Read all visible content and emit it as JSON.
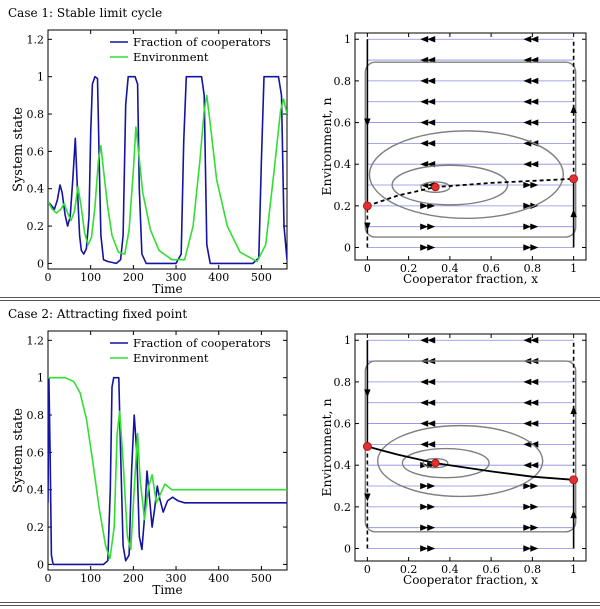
{
  "figure": {
    "cases": [
      {
        "title": "Case 1: Stable limit cycle",
        "timeseries": {
          "type": "line",
          "ylabel": "System state",
          "xlabel": "Time",
          "xlim": [
            0,
            560
          ],
          "ylim": [
            -0.03,
            1.25
          ],
          "xticks": [
            0,
            100,
            200,
            300,
            400,
            500
          ],
          "yticks": [
            0,
            0.2,
            0.4,
            0.6,
            0.8,
            1,
            1.2
          ],
          "ytick_labels": [
            "0",
            "0.2",
            "0.4",
            "0.6",
            "0.8",
            "1",
            "1.2"
          ],
          "legend": [
            "Fraction of cooperators",
            "Environment"
          ],
          "legend_position": "top-right",
          "series": [
            {
              "name": "Fraction of cooperators",
              "color": "#1414a0",
              "points": [
                [
                  0,
                  0.33
                ],
                [
                  8,
                  0.31
                ],
                [
                  15,
                  0.29
                ],
                [
                  22,
                  0.34
                ],
                [
                  28,
                  0.42
                ],
                [
                  33,
                  0.38
                ],
                [
                  40,
                  0.26
                ],
                [
                  46,
                  0.2
                ],
                [
                  52,
                  0.25
                ],
                [
                  58,
                  0.45
                ],
                [
                  64,
                  0.67
                ],
                [
                  69,
                  0.4
                ],
                [
                  74,
                  0.15
                ],
                [
                  78,
                  0.07
                ],
                [
                  84,
                  0.05
                ],
                [
                  90,
                  0.08
                ],
                [
                  96,
                  0.25
                ],
                [
                  100,
                  0.7
                ],
                [
                  104,
                  0.96
                ],
                [
                  110,
                  1.0
                ],
                [
                  116,
                  0.99
                ],
                [
                  120,
                  0.55
                ],
                [
                  124,
                  0.15
                ],
                [
                  130,
                  0.02
                ],
                [
                  140,
                  0.01
                ],
                [
                  160,
                  0.0
                ],
                [
                  170,
                  0.02
                ],
                [
                  176,
                  0.15
                ],
                [
                  182,
                  0.85
                ],
                [
                  188,
                  1.0
                ],
                [
                  204,
                  1.0
                ],
                [
                  210,
                  0.96
                ],
                [
                  214,
                  0.4
                ],
                [
                  220,
                  0.05
                ],
                [
                  230,
                  0.0
                ],
                [
                  300,
                  0.0
                ],
                [
                  312,
                  0.05
                ],
                [
                  318,
                  0.65
                ],
                [
                  324,
                  1.0
                ],
                [
                  360,
                  1.0
                ],
                [
                  366,
                  0.9
                ],
                [
                  372,
                  0.1
                ],
                [
                  380,
                  0.0
                ],
                [
                  480,
                  0.0
                ],
                [
                  494,
                  0.03
                ],
                [
                  500,
                  0.55
                ],
                [
                  506,
                  1.0
                ],
                [
                  540,
                  1.0
                ],
                [
                  547,
                  0.9
                ],
                [
                  553,
                  0.2
                ],
                [
                  560,
                  0.02
                ]
              ]
            },
            {
              "name": "Environment",
              "color": "#33dd33",
              "points": [
                [
                  0,
                  0.33
                ],
                [
                  10,
                  0.29
                ],
                [
                  20,
                  0.27
                ],
                [
                  30,
                  0.29
                ],
                [
                  38,
                  0.32
                ],
                [
                  46,
                  0.27
                ],
                [
                  54,
                  0.23
                ],
                [
                  62,
                  0.28
                ],
                [
                  70,
                  0.41
                ],
                [
                  78,
                  0.3
                ],
                [
                  86,
                  0.16
                ],
                [
                  94,
                  0.1
                ],
                [
                  102,
                  0.14
                ],
                [
                  110,
                  0.3
                ],
                [
                  118,
                  0.55
                ],
                [
                  124,
                  0.63
                ],
                [
                  130,
                  0.5
                ],
                [
                  140,
                  0.3
                ],
                [
                  150,
                  0.15
                ],
                [
                  165,
                  0.06
                ],
                [
                  180,
                  0.05
                ],
                [
                  190,
                  0.18
                ],
                [
                  200,
                  0.5
                ],
                [
                  206,
                  0.73
                ],
                [
                  212,
                  0.6
                ],
                [
                  222,
                  0.38
                ],
                [
                  240,
                  0.18
                ],
                [
                  260,
                  0.07
                ],
                [
                  290,
                  0.02
                ],
                [
                  320,
                  0.02
                ],
                [
                  340,
                  0.2
                ],
                [
                  356,
                  0.55
                ],
                [
                  366,
                  0.82
                ],
                [
                  372,
                  0.9
                ],
                [
                  380,
                  0.75
                ],
                [
                  395,
                  0.45
                ],
                [
                  420,
                  0.2
                ],
                [
                  450,
                  0.06
                ],
                [
                  490,
                  0.01
                ],
                [
                  510,
                  0.1
                ],
                [
                  530,
                  0.5
                ],
                [
                  545,
                  0.82
                ],
                [
                  552,
                  0.88
                ],
                [
                  560,
                  0.8
                ]
              ]
            }
          ]
        },
        "phase": {
          "type": "line",
          "ylabel": "Environment, n",
          "xlabel": "Cooperator fraction, x",
          "xlim": [
            -0.06,
            1.06
          ],
          "ylim": [
            -0.06,
            1.03
          ],
          "xticks": [
            0,
            0.2,
            0.4,
            0.6,
            0.8,
            1
          ],
          "xtick_labels": [
            "0",
            "0.2",
            "0.4",
            "0.6",
            "0.8",
            "1"
          ],
          "yticks": [
            0,
            0.2,
            0.4,
            0.6,
            0.8,
            1
          ],
          "ytick_labels": [
            "0",
            "0.2",
            "0.4",
            "0.6",
            "0.8",
            "1"
          ],
          "interior_fixed_point": [
            0.33,
            0.29
          ],
          "edge_fixed_points": [
            [
              0,
              0.2
            ],
            [
              1,
              0.33
            ]
          ],
          "nullcline": "dashed",
          "nullcline_points": [
            [
              0,
              0.2
            ],
            [
              0.15,
              0.25
            ],
            [
              0.33,
              0.29
            ],
            [
              0.6,
              0.31
            ],
            [
              0.8,
              0.32
            ],
            [
              1,
              0.33
            ]
          ],
          "orbits": [
            {
              "center": [
                0.33,
                0.29
              ],
              "rx": 0.07,
              "ry": 0.025
            },
            {
              "center": [
                0.4,
                0.3
              ],
              "rx": 0.28,
              "ry": 0.095
            },
            {
              "center": [
                0.48,
                0.35
              ],
              "rx": 0.47,
              "ry": 0.21
            },
            {
              "center": [
                0.5,
                0.47
              ],
              "rx": 0.51,
              "ry": 0.42
            }
          ]
        }
      },
      {
        "title": "Case 2: Attracting fixed point",
        "timeseries": {
          "type": "line",
          "ylabel": "System state",
          "xlabel": "Time",
          "xlim": [
            0,
            560
          ],
          "ylim": [
            -0.03,
            1.25
          ],
          "xticks": [
            0,
            100,
            200,
            300,
            400,
            500
          ],
          "yticks": [
            0,
            0.2,
            0.4,
            0.6,
            0.8,
            1,
            1.2
          ],
          "ytick_labels": [
            "0",
            "0.2",
            "0.4",
            "0.6",
            "0.8",
            "1",
            "1.2"
          ],
          "legend": [
            "Fraction of cooperators",
            "Environment"
          ],
          "legend_position": "top-right",
          "series": [
            {
              "name": "Fraction of cooperators",
              "color": "#1414a0",
              "points": [
                [
                  0,
                  0.33
                ],
                [
                  2,
                  1.0
                ],
                [
                  5,
                  0.6
                ],
                [
                  8,
                  0.05
                ],
                [
                  12,
                  0.0
                ],
                [
                  130,
                  0.0
                ],
                [
                  140,
                  0.02
                ],
                [
                  146,
                  0.4
                ],
                [
                  150,
                  0.95
                ],
                [
                  154,
                  1.0
                ],
                [
                  166,
                  1.0
                ],
                [
                  170,
                  0.6
                ],
                [
                  176,
                  0.1
                ],
                [
                  182,
                  0.02
                ],
                [
                  190,
                  0.05
                ],
                [
                  196,
                  0.5
                ],
                [
                  202,
                  0.8
                ],
                [
                  208,
                  0.6
                ],
                [
                  214,
                  0.15
                ],
                [
                  220,
                  0.08
                ],
                [
                  226,
                  0.25
                ],
                [
                  232,
                  0.5
                ],
                [
                  238,
                  0.35
                ],
                [
                  244,
                  0.2
                ],
                [
                  250,
                  0.3
                ],
                [
                  256,
                  0.42
                ],
                [
                  262,
                  0.35
                ],
                [
                  270,
                  0.28
                ],
                [
                  280,
                  0.34
                ],
                [
                  292,
                  0.36
                ],
                [
                  305,
                  0.34
                ],
                [
                  320,
                  0.33
                ],
                [
                  560,
                  0.33
                ]
              ]
            },
            {
              "name": "Environment",
              "color": "#33dd33",
              "points": [
                [
                  0,
                  1.0
                ],
                [
                  40,
                  1.0
                ],
                [
                  60,
                  0.98
                ],
                [
                  75,
                  0.92
                ],
                [
                  90,
                  0.78
                ],
                [
                  105,
                  0.55
                ],
                [
                  120,
                  0.3
                ],
                [
                  135,
                  0.1
                ],
                [
                  145,
                  0.03
                ],
                [
                  155,
                  0.2
                ],
                [
                  162,
                  0.7
                ],
                [
                  168,
                  0.82
                ],
                [
                  176,
                  0.55
                ],
                [
                  186,
                  0.15
                ],
                [
                  194,
                  0.08
                ],
                [
                  202,
                  0.4
                ],
                [
                  210,
                  0.7
                ],
                [
                  216,
                  0.45
                ],
                [
                  226,
                  0.24
                ],
                [
                  236,
                  0.42
                ],
                [
                  244,
                  0.48
                ],
                [
                  254,
                  0.33
                ],
                [
                  264,
                  0.38
                ],
                [
                  274,
                  0.43
                ],
                [
                  290,
                  0.4
                ],
                [
                  320,
                  0.4
                ],
                [
                  560,
                  0.4
                ]
              ]
            }
          ]
        },
        "phase": {
          "type": "line",
          "ylabel": "Environment, n",
          "xlabel": "Cooperator fraction, x",
          "xlim": [
            -0.06,
            1.06
          ],
          "ylim": [
            -0.06,
            1.03
          ],
          "xticks": [
            0,
            0.2,
            0.4,
            0.6,
            0.8,
            1
          ],
          "xtick_labels": [
            "0",
            "0.2",
            "0.4",
            "0.6",
            "0.8",
            "1"
          ],
          "yticks": [
            0,
            0.2,
            0.4,
            0.6,
            0.8,
            1
          ],
          "ytick_labels": [
            "0",
            "0.2",
            "0.4",
            "0.6",
            "0.8",
            "1"
          ],
          "interior_fixed_point": [
            0.33,
            0.41
          ],
          "edge_fixed_points": [
            [
              0,
              0.49
            ],
            [
              1,
              0.33
            ]
          ],
          "nullcline": "solid",
          "nullcline_points": [
            [
              0,
              0.49
            ],
            [
              0.15,
              0.45
            ],
            [
              0.33,
              0.41
            ],
            [
              0.6,
              0.37
            ],
            [
              0.8,
              0.345
            ],
            [
              1,
              0.33
            ]
          ],
          "orbits": [
            {
              "center": [
                0.33,
                0.41
              ],
              "rx": 0.06,
              "ry": 0.022
            },
            {
              "center": [
                0.38,
                0.41
              ],
              "rx": 0.21,
              "ry": 0.07
            },
            {
              "center": [
                0.45,
                0.42
              ],
              "rx": 0.4,
              "ry": 0.17
            },
            {
              "center": [
                0.5,
                0.49
              ],
              "rx": 0.51,
              "ry": 0.41
            }
          ]
        }
      }
    ]
  }
}
